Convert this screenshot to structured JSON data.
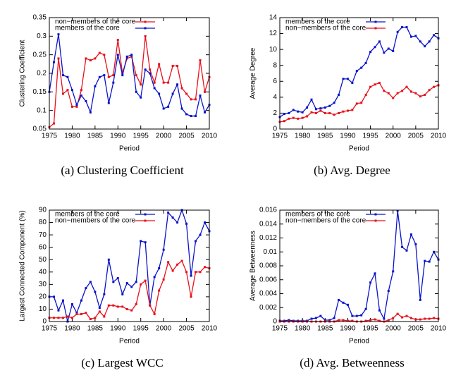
{
  "chart_data": [
    {
      "type": "line",
      "caption": "(a) Clustering Coefficient",
      "xlabel": "Period",
      "ylabel": "Clustering Coefficient",
      "x": [
        1975,
        1976,
        1977,
        1978,
        1979,
        1980,
        1981,
        1982,
        1983,
        1984,
        1985,
        1986,
        1987,
        1988,
        1989,
        1990,
        1991,
        1992,
        1993,
        1994,
        1995,
        1996,
        1997,
        1998,
        1999,
        2000,
        2001,
        2002,
        2003,
        2004,
        2005,
        2006,
        2007,
        2008,
        2009,
        2010
      ],
      "xlim": [
        1975,
        2010
      ],
      "xticks": [
        1975,
        1980,
        1985,
        1990,
        1995,
        2000,
        2005,
        2010
      ],
      "ylim": [
        0.05,
        0.35
      ],
      "yticks": [
        0.05,
        0.1,
        0.15,
        0.2,
        0.25,
        0.3,
        0.35
      ],
      "legend": "upper-left",
      "series": [
        {
          "name": "non−members of the core",
          "color": "#e8101a",
          "values": [
            0.055,
            0.065,
            0.24,
            0.145,
            0.155,
            0.11,
            0.11,
            0.155,
            0.24,
            0.235,
            0.24,
            0.255,
            0.25,
            0.19,
            0.195,
            0.29,
            0.2,
            0.24,
            0.245,
            0.195,
            0.17,
            0.3,
            0.21,
            0.175,
            0.225,
            0.175,
            0.175,
            0.22,
            0.22,
            0.16,
            0.145,
            0.13,
            0.13,
            0.235,
            0.15,
            0.19
          ]
        },
        {
          "name": "members of the core",
          "color": "#0a14c8",
          "values": [
            0.15,
            0.23,
            0.305,
            0.195,
            0.19,
            0.155,
            0.115,
            0.14,
            0.125,
            0.095,
            0.165,
            0.19,
            0.195,
            0.12,
            0.175,
            0.25,
            0.195,
            0.245,
            0.25,
            0.15,
            0.135,
            0.21,
            0.2,
            0.16,
            0.145,
            0.105,
            0.11,
            0.145,
            0.17,
            0.105,
            0.09,
            0.085,
            0.085,
            0.14,
            0.095,
            0.115
          ]
        }
      ]
    },
    {
      "type": "line",
      "caption": "(b) Avg. Degree",
      "xlabel": "Period",
      "ylabel": "Average Degree",
      "x": [
        1975,
        1976,
        1977,
        1978,
        1979,
        1980,
        1981,
        1982,
        1983,
        1984,
        1985,
        1986,
        1987,
        1988,
        1989,
        1990,
        1991,
        1992,
        1993,
        1994,
        1995,
        1996,
        1997,
        1998,
        1999,
        2000,
        2001,
        2002,
        2003,
        2004,
        2005,
        2006,
        2007,
        2008,
        2009,
        2010
      ],
      "xlim": [
        1975,
        2010
      ],
      "xticks": [
        1975,
        1980,
        1985,
        1990,
        1995,
        2000,
        2005,
        2010
      ],
      "ylim": [
        0,
        14
      ],
      "yticks": [
        0,
        2,
        4,
        6,
        8,
        10,
        12,
        14
      ],
      "legend": "upper-left",
      "series": [
        {
          "name": "members of the core",
          "color": "#0a14c8",
          "values": [
            1.5,
            1.9,
            2.0,
            2.4,
            2.2,
            2.1,
            2.7,
            3.7,
            2.5,
            2.6,
            2.7,
            2.9,
            3.3,
            4.3,
            6.3,
            6.3,
            5.8,
            7.3,
            7.7,
            8.3,
            9.7,
            10.3,
            11.0,
            9.6,
            10.1,
            9.8,
            12.2,
            12.8,
            12.8,
            11.6,
            11.7,
            11.0,
            10.4,
            11.0,
            11.8,
            11.4
          ]
        },
        {
          "name": "non−members of the core",
          "color": "#e8101a",
          "values": [
            0.9,
            1.0,
            1.3,
            1.4,
            1.3,
            1.4,
            1.6,
            2.1,
            2.0,
            2.3,
            2.0,
            2.0,
            1.8,
            2.0,
            2.2,
            2.3,
            2.4,
            3.2,
            3.3,
            4.3,
            5.3,
            5.6,
            5.8,
            4.8,
            4.5,
            3.9,
            4.5,
            4.8,
            5.3,
            4.7,
            4.5,
            4.1,
            4.3,
            4.9,
            5.3,
            5.5
          ]
        }
      ]
    },
    {
      "type": "line",
      "caption": "(c) Largest WCC",
      "xlabel": "Period",
      "ylabel": "Largest Connected Component (%)",
      "x": [
        1975,
        1976,
        1977,
        1978,
        1979,
        1980,
        1981,
        1982,
        1983,
        1984,
        1985,
        1986,
        1987,
        1988,
        1989,
        1990,
        1991,
        1992,
        1993,
        1994,
        1995,
        1996,
        1997,
        1998,
        1999,
        2000,
        2001,
        2002,
        2003,
        2004,
        2005,
        2006,
        2007,
        2008,
        2009,
        2010
      ],
      "xlim": [
        1975,
        2010
      ],
      "xticks": [
        1975,
        1980,
        1985,
        1990,
        1995,
        2000,
        2005,
        2010
      ],
      "ylim": [
        0,
        90
      ],
      "yticks": [
        0,
        10,
        20,
        30,
        40,
        50,
        60,
        70,
        80,
        90
      ],
      "legend": "upper-left",
      "series": [
        {
          "name": "members of the core",
          "color": "#0a14c8",
          "values": [
            20,
            20,
            9,
            17,
            0,
            14,
            7,
            17,
            27,
            32,
            24,
            11,
            22,
            50,
            32,
            35,
            22,
            31,
            28,
            32,
            65,
            64,
            13,
            36,
            43,
            58,
            88,
            84,
            80,
            90,
            79,
            37,
            65,
            70,
            80,
            73
          ]
        },
        {
          "name": "non−members of the core",
          "color": "#e8101a",
          "values": [
            3,
            3,
            3,
            3,
            4,
            3,
            6,
            6,
            7,
            2,
            3,
            8,
            4,
            13,
            13,
            12,
            12,
            10,
            9,
            14,
            30,
            33,
            13,
            6,
            25,
            34,
            48,
            41,
            46,
            49,
            40,
            20,
            40,
            40,
            44,
            43
          ]
        }
      ]
    },
    {
      "type": "line",
      "caption": "(d) Avg. Betweenness",
      "xlabel": "Period",
      "ylabel": "Average Betweenness",
      "x": [
        1975,
        1976,
        1977,
        1978,
        1979,
        1980,
        1981,
        1982,
        1983,
        1984,
        1985,
        1986,
        1987,
        1988,
        1989,
        1990,
        1991,
        1992,
        1993,
        1994,
        1995,
        1996,
        1997,
        1998,
        1999,
        2000,
        2001,
        2002,
        2003,
        2004,
        2005,
        2006,
        2007,
        2008,
        2009,
        2010
      ],
      "xlim": [
        1975,
        2010
      ],
      "xticks": [
        1975,
        1980,
        1985,
        1990,
        1995,
        2000,
        2005,
        2010
      ],
      "ylim": [
        0,
        0.016
      ],
      "yticks": [
        0,
        0.002,
        0.004,
        0.006,
        0.008,
        0.01,
        0.012,
        0.014,
        0.016
      ],
      "legend": "upper-left",
      "series": [
        {
          "name": "members of the core",
          "color": "#0a14c8",
          "values": [
            0.0001,
            0.0001,
            0.0002,
            0.0001,
            0.0001,
            0.0001,
            0.0001,
            0.0004,
            0.0005,
            0.0008,
            0.0002,
            0.0002,
            0.0005,
            0.0031,
            0.0027,
            0.0024,
            0.0008,
            0.0008,
            0.0009,
            0.0018,
            0.0056,
            0.0069,
            0.0016,
            0.0004,
            0.0044,
            0.0072,
            0.0159,
            0.0107,
            0.0102,
            0.0125,
            0.0111,
            0.0031,
            0.0087,
            0.0086,
            0.01,
            0.0089
          ]
        },
        {
          "name": "non−members of the core",
          "color": "#e8101a",
          "values": [
            0,
            0,
            0,
            0,
            0,
            0,
            0,
            0,
            0,
            0,
            0,
            0,
            0,
            0.0002,
            0.0002,
            0.0001,
            0.0001,
            0,
            0,
            0.0001,
            0.0002,
            0.0003,
            0.0001,
            0,
            0.0002,
            0.0005,
            0.0011,
            0.0006,
            0.0008,
            0.0005,
            0.0003,
            0.0003,
            0.0004,
            0.0004,
            0.0005,
            0.0004
          ]
        }
      ]
    }
  ]
}
